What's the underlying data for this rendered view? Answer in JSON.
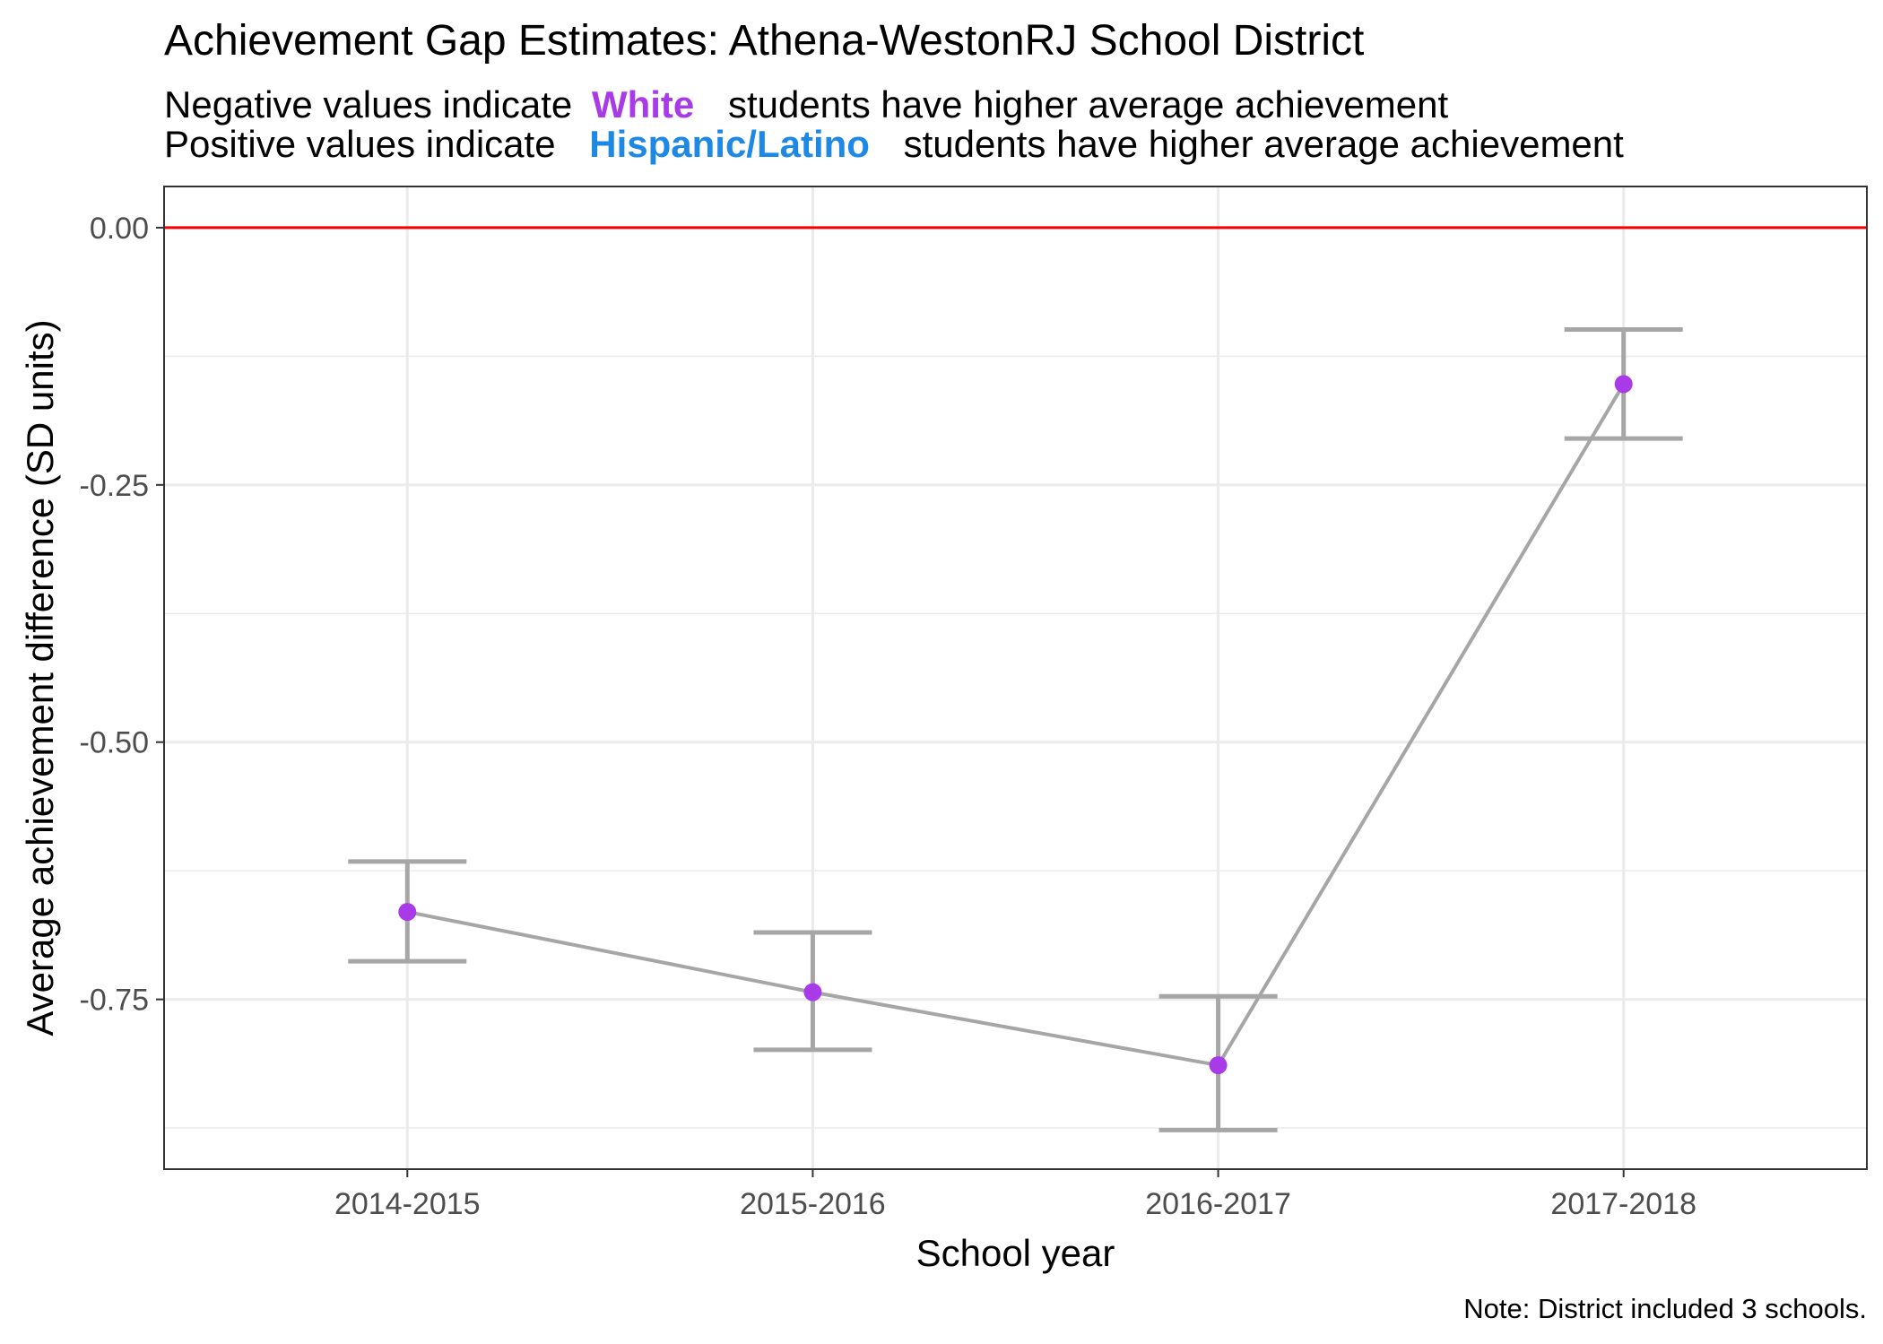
{
  "chart_data": {
    "type": "line",
    "title": "Achievement Gap Estimates: Athena-WestonRJ School District",
    "subtitle_line1": {
      "prefix": "Negative values indicate",
      "group": "White",
      "suffix": "students have higher average achievement"
    },
    "subtitle_line2": {
      "prefix": "Positive values indicate",
      "group": "Hispanic/Latino",
      "suffix": "students have higher average achievement"
    },
    "xlabel": "School year",
    "ylabel": "Average achievement difference (SD units)",
    "note": "Note: District included 3 schools.",
    "categories": [
      "2014-2015",
      "2015-2016",
      "2016-2017",
      "2017-2018"
    ],
    "series": [
      {
        "values": [
          -0.665,
          -0.743,
          -0.814,
          -0.152
        ],
        "ci_lower": [
          -0.713,
          -0.799,
          -0.877,
          -0.205
        ],
        "ci_upper": [
          -0.616,
          -0.685,
          -0.747,
          -0.099
        ]
      }
    ],
    "yticks": [
      "0.00",
      "-0.25",
      "-0.50",
      "-0.75"
    ],
    "ytick_values": [
      0,
      -0.25,
      -0.5,
      -0.75
    ],
    "ylim": [
      -0.915,
      0.04
    ],
    "reference_line": 0,
    "grid": true,
    "colors": {
      "white_group": "#a93ae8",
      "hispanic_group": "#1e88e5",
      "point": "#a93ae8",
      "line": "#a6a6a6",
      "reference": "#ff0000",
      "grid": "#ebebeb"
    }
  }
}
